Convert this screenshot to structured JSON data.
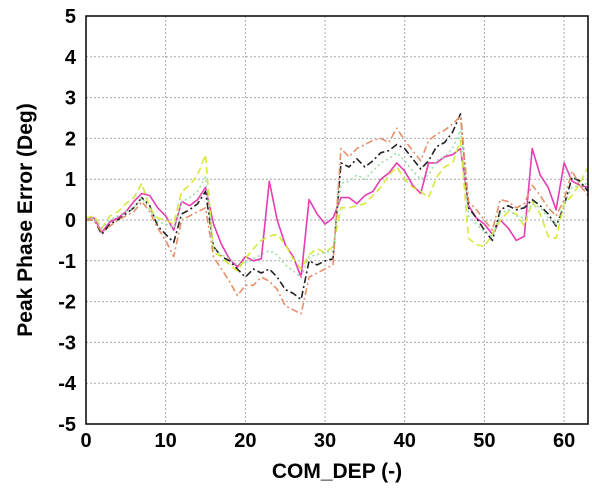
{
  "chart_data": {
    "type": "line",
    "title": "",
    "xlabel": "COM_DEP (-)",
    "ylabel": "Peak Phase Error (Deg)",
    "xlim": [
      0,
      63
    ],
    "ylim": [
      -5,
      5
    ],
    "xticks": [
      0,
      10,
      20,
      30,
      40,
      50,
      60
    ],
    "yticks": [
      -5,
      -4,
      -3,
      -2,
      -1,
      0,
      1,
      2,
      3,
      4,
      5
    ],
    "grid": true,
    "legend": "none",
    "x": [
      0,
      1,
      2,
      3,
      4,
      5,
      6,
      7,
      8,
      9,
      10,
      11,
      12,
      13,
      14,
      15,
      16,
      17,
      18,
      19,
      20,
      21,
      22,
      23,
      24,
      25,
      26,
      27,
      28,
      29,
      30,
      31,
      32,
      33,
      34,
      35,
      36,
      37,
      38,
      39,
      40,
      41,
      42,
      43,
      44,
      45,
      46,
      47,
      48,
      49,
      50,
      51,
      52,
      53,
      54,
      55,
      56,
      57,
      58,
      59,
      60,
      61,
      62,
      63
    ],
    "series": [
      {
        "color": "#e63cb4",
        "dash": "solid",
        "values": [
          0.05,
          0.05,
          -0.3,
          -0.05,
          0.05,
          0.2,
          0.45,
          0.65,
          0.6,
          0.3,
          0.1,
          -0.25,
          0.45,
          0.35,
          0.5,
          0.8,
          -0.1,
          -0.6,
          -0.95,
          -1.15,
          -0.9,
          -1.0,
          -0.95,
          0.95,
          0.0,
          -0.6,
          -0.9,
          -1.4,
          0.5,
          0.15,
          -0.1,
          0.05,
          0.55,
          0.55,
          0.4,
          0.6,
          0.7,
          1.0,
          1.15,
          1.4,
          1.2,
          0.85,
          0.65,
          1.4,
          1.4,
          1.55,
          1.6,
          1.75,
          0.35,
          0.05,
          -0.1,
          -0.35,
          0.0,
          -0.2,
          -0.5,
          -0.4,
          1.75,
          1.1,
          0.8,
          0.25,
          1.4,
          0.95,
          0.85,
          0.8
        ]
      },
      {
        "color": "#222222",
        "dash": "dashdot",
        "values": [
          0.0,
          0.0,
          -0.35,
          -0.1,
          0.0,
          0.15,
          0.3,
          0.55,
          0.35,
          -0.15,
          -0.35,
          -0.55,
          0.15,
          0.25,
          0.4,
          0.7,
          -0.65,
          -0.9,
          -1.0,
          -1.2,
          -1.4,
          -1.2,
          -1.3,
          -1.2,
          -1.4,
          -1.7,
          -1.8,
          -1.95,
          -1.0,
          -1.1,
          -1.0,
          -0.95,
          1.4,
          1.3,
          1.5,
          1.3,
          1.45,
          1.65,
          1.7,
          1.85,
          1.75,
          1.5,
          1.25,
          1.45,
          1.8,
          1.9,
          2.15,
          2.6,
          0.3,
          0.05,
          -0.25,
          -0.5,
          0.25,
          0.35,
          0.25,
          0.3,
          0.5,
          0.35,
          0.15,
          -0.15,
          0.35,
          1.05,
          0.95,
          0.7
        ]
      },
      {
        "color": "#d7e83a",
        "dash": "dashed",
        "values": [
          0.05,
          0.1,
          -0.2,
          0.1,
          0.2,
          0.4,
          0.55,
          0.9,
          0.3,
          0.05,
          0.0,
          -0.1,
          0.7,
          0.85,
          1.1,
          1.6,
          -0.8,
          -0.9,
          -1.1,
          -1.25,
          -0.95,
          -0.7,
          -0.5,
          -0.4,
          -0.35,
          -0.6,
          -0.95,
          -1.2,
          -0.85,
          -0.7,
          -0.8,
          -0.65,
          0.3,
          0.3,
          0.35,
          0.4,
          0.6,
          0.8,
          1.1,
          1.3,
          1.0,
          0.8,
          0.7,
          0.55,
          1.05,
          1.3,
          1.4,
          1.95,
          -0.45,
          -0.6,
          -0.65,
          -0.35,
          0.0,
          0.2,
          0.15,
          -0.15,
          0.45,
          0.15,
          -0.4,
          -0.45,
          0.4,
          0.6,
          0.9,
          1.3
        ]
      },
      {
        "color": "#9be0a8",
        "dash": "dotted",
        "values": [
          0.0,
          0.05,
          -0.2,
          0.0,
          0.1,
          0.2,
          0.3,
          0.55,
          0.25,
          -0.05,
          -0.1,
          -0.2,
          0.45,
          0.55,
          0.7,
          1.05,
          -0.7,
          -0.85,
          -0.95,
          -1.1,
          -1.05,
          -0.95,
          -0.85,
          -0.75,
          -0.85,
          -1.1,
          -1.25,
          -1.4,
          -0.9,
          -0.85,
          -0.8,
          -0.75,
          0.9,
          0.95,
          1.1,
          1.0,
          1.2,
          1.4,
          1.5,
          1.65,
          1.45,
          1.2,
          1.0,
          1.1,
          1.45,
          1.55,
          1.75,
          2.2,
          0.1,
          -0.1,
          -0.3,
          -0.4,
          0.15,
          0.25,
          0.1,
          0.05,
          0.4,
          0.3,
          0.05,
          -0.1,
          0.4,
          0.8,
          0.85,
          0.9
        ]
      },
      {
        "color": "#e6906a",
        "dash": "dashdot",
        "values": [
          0.0,
          0.0,
          -0.3,
          -0.15,
          0.0,
          0.1,
          0.2,
          0.45,
          0.2,
          -0.2,
          -0.5,
          -0.9,
          0.0,
          0.1,
          0.2,
          0.3,
          -0.9,
          -1.2,
          -1.5,
          -1.85,
          -1.6,
          -1.6,
          -1.4,
          -1.5,
          -1.7,
          -2.1,
          -2.2,
          -2.3,
          -1.4,
          -1.3,
          -1.2,
          -1.1,
          1.75,
          1.55,
          1.75,
          1.85,
          1.95,
          2.0,
          1.9,
          2.25,
          1.95,
          1.7,
          1.45,
          1.95,
          2.1,
          2.2,
          2.35,
          2.55,
          0.45,
          0.25,
          0.0,
          -0.25,
          0.5,
          0.45,
          0.3,
          0.4,
          0.85,
          0.6,
          0.3,
          0.1,
          0.5,
          1.2,
          0.85,
          0.6
        ]
      }
    ]
  }
}
